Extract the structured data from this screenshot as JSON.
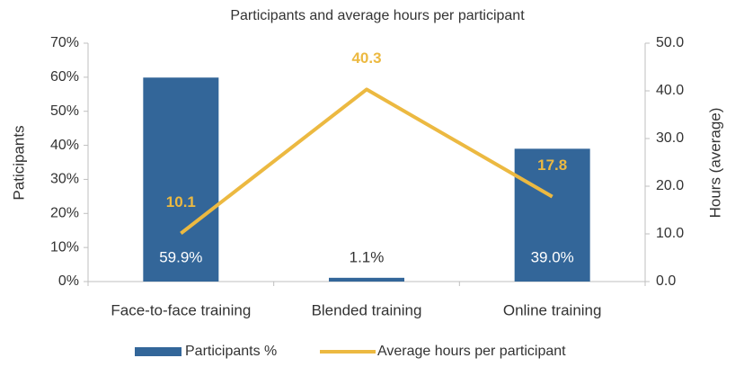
{
  "chart_data": {
    "type": "bar",
    "title": "Participants and average hours per participant",
    "y_label": "Paticipants",
    "y2_label": "Hours (average)",
    "categories": [
      "Face-to-face training",
      "Blended training",
      "Online training"
    ],
    "series": [
      {
        "name": "Participants %",
        "color": "#336699",
        "type": "bar",
        "values": [
          59.9,
          1.1,
          39.0
        ],
        "value_labels": [
          "59.9%",
          "1.1%",
          "39.0%"
        ]
      },
      {
        "name": "Average hours per participant",
        "color": "#ecb941",
        "type": "line",
        "axis": "y2",
        "values": [
          10.1,
          40.3,
          17.8
        ]
      }
    ],
    "ylim": [
      0,
      70
    ],
    "yticks": [
      {
        "value": 0,
        "label": "0%"
      },
      {
        "value": 10,
        "label": "10%"
      },
      {
        "value": 20,
        "label": "20%"
      },
      {
        "value": 30,
        "label": "30%"
      },
      {
        "value": 40,
        "label": "40%"
      },
      {
        "value": 50,
        "label": "50%"
      },
      {
        "value": 60,
        "label": "60%"
      },
      {
        "value": 70,
        "label": "70%"
      }
    ],
    "y2lim": [
      0,
      50
    ],
    "y2ticks": [
      {
        "value": 0,
        "label": "0.0"
      },
      {
        "value": 10,
        "label": "10.0"
      },
      {
        "value": 20,
        "label": "20.0"
      },
      {
        "value": 30,
        "label": "30.0"
      },
      {
        "value": 40,
        "label": "40.0"
      },
      {
        "value": 50,
        "label": "50.0"
      }
    ],
    "legend": "bottom"
  }
}
